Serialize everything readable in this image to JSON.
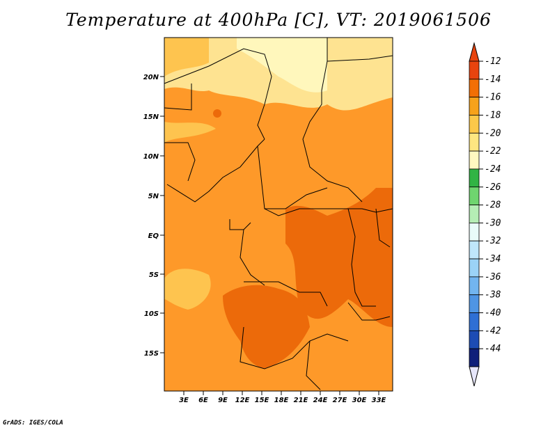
{
  "title": "Temperature at 400hPa [C], VT: 2019061506",
  "credit": "GrADS: IGES/COLA",
  "map": {
    "lon_ticks": [
      "3E",
      "6E",
      "9E",
      "12E",
      "15E",
      "18E",
      "21E",
      "24E",
      "27E",
      "30E",
      "33E"
    ],
    "lat_ticks": [
      "20N",
      "15N",
      "10N",
      "5N",
      "EQ",
      "5S",
      "10S",
      "15S"
    ],
    "region_colors": {
      "-22_-20": "#fff7bc",
      "-20_-18": "#fee391",
      "-18_-16": "#fec44f",
      "-16_-14": "#fe9929",
      "-14_-12": "#ec6a0a"
    }
  },
  "colorbar": {
    "labels": [
      "-12",
      "-14",
      "-16",
      "-18",
      "-20",
      "-22",
      "-24",
      "-26",
      "-28",
      "-30",
      "-32",
      "-34",
      "-36",
      "-38",
      "-40",
      "-42",
      "-44"
    ],
    "colors": [
      "#e8440e",
      "#f26f05",
      "#f7a21a",
      "#fcc849",
      "#fde681",
      "#fff8c0",
      "#31b444",
      "#6fd56f",
      "#b5edb5",
      "#e9fbf9",
      "#bfe6fb",
      "#9bd3f7",
      "#72b5f0",
      "#4f95e4",
      "#2f6fd4",
      "#1d4cb4",
      "#0f1f7a"
    ],
    "top_cap_color": "#e8440e",
    "bottom_cap_color": "#e6e6fa"
  }
}
